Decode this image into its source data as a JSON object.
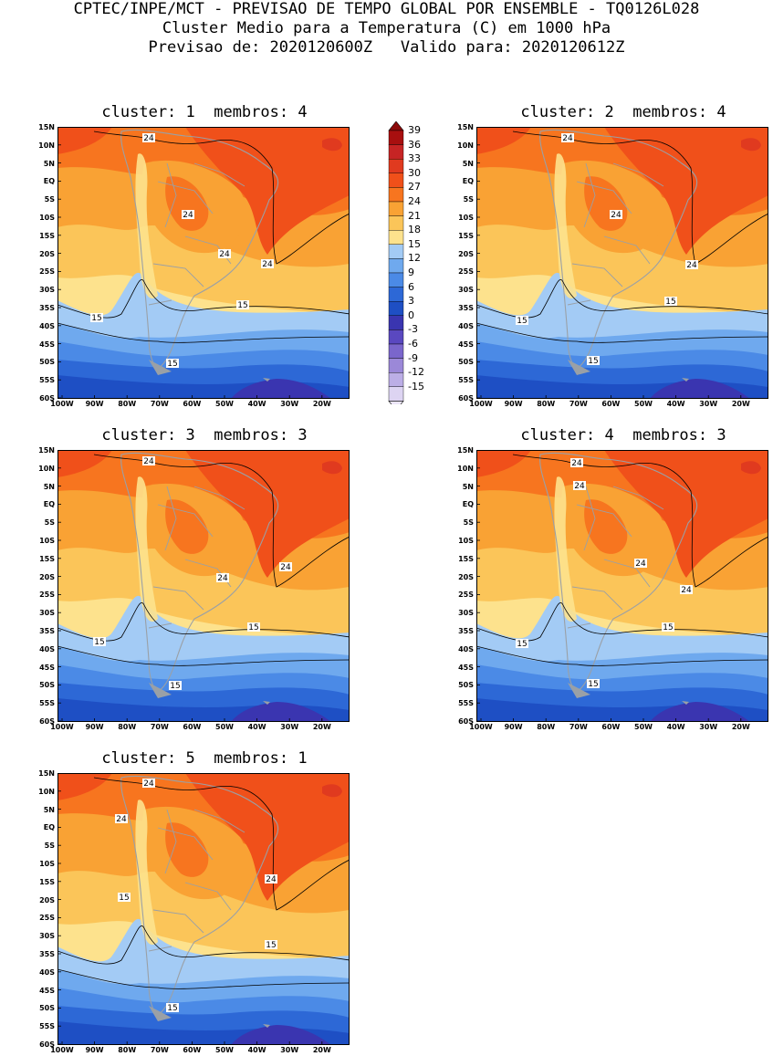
{
  "header": {
    "line1": "CPTEC/INPE/MCT - PREVISAO DE TEMPO GLOBAL POR ENSEMBLE - TQ0126L028",
    "line2": "Cluster Medio para a Temperatura (C) em 1000 hPa",
    "line3": "Previsao de: 2020120600Z   Valido para: 2020120612Z"
  },
  "panels": [
    {
      "title": "cluster: 1  membros: 4",
      "labels": [
        "24",
        "24",
        "24",
        "24",
        "15",
        "15",
        "15"
      ]
    },
    {
      "title": "cluster: 2  membros: 4",
      "labels": [
        "24",
        "24",
        "24",
        "15",
        "15",
        "15"
      ]
    },
    {
      "title": "cluster: 3  membros: 3",
      "labels": [
        "24",
        "24",
        "24",
        "15",
        "15",
        "15"
      ]
    },
    {
      "title": "cluster: 4  membros: 3",
      "labels": [
        "24",
        "24",
        "24",
        "24",
        "15",
        "15",
        "15"
      ]
    },
    {
      "title": "cluster: 5  membros: 1",
      "labels": [
        "24",
        "24",
        "24",
        "15",
        "15",
        "15"
      ]
    }
  ],
  "y_axis_labels": [
    "15N",
    "10N",
    "5N",
    "EQ",
    "5S",
    "10S",
    "15S",
    "20S",
    "25S",
    "30S",
    "35S",
    "40S",
    "45S",
    "50S",
    "55S",
    "60S"
  ],
  "x_axis_labels": [
    "100W",
    "90W",
    "80W",
    "70W",
    "60W",
    "50W",
    "40W",
    "30W",
    "20W"
  ],
  "colorbar": {
    "ticks": [
      "39",
      "36",
      "33",
      "30",
      "27",
      "24",
      "21",
      "18",
      "15",
      "12",
      "9",
      "6",
      "3",
      "0",
      "-3",
      "-6",
      "-9",
      "-12",
      "-15"
    ],
    "colors": [
      "#a80f0f",
      "#c62424",
      "#e03a1f",
      "#f0501a",
      "#f7751f",
      "#f9a234",
      "#fbc559",
      "#fde28d",
      "#a3cbf5",
      "#6fa9ee",
      "#4b8ae6",
      "#2d68d6",
      "#1e4fc4",
      "#3a35b0",
      "#5a48c0",
      "#7a66cc",
      "#9b88d8",
      "#bcaee6",
      "#ddd4f2"
    ],
    "top_color": "#8c0a0a",
    "bottom_color": "#ece6f8"
  },
  "palette": {
    "t33": "#e03a1f",
    "t30": "#f0501a",
    "t27": "#f7751f",
    "t24": "#f9a234",
    "t21": "#fbc559",
    "t18": "#fde28d",
    "t15": "#a3cbf5",
    "t12": "#6fa9ee",
    "t9": "#4b8ae6",
    "t6": "#2d68d6",
    "t3": "#1e4fc4",
    "t0": "#3a35b0",
    "land": "#9aa0a6"
  }
}
